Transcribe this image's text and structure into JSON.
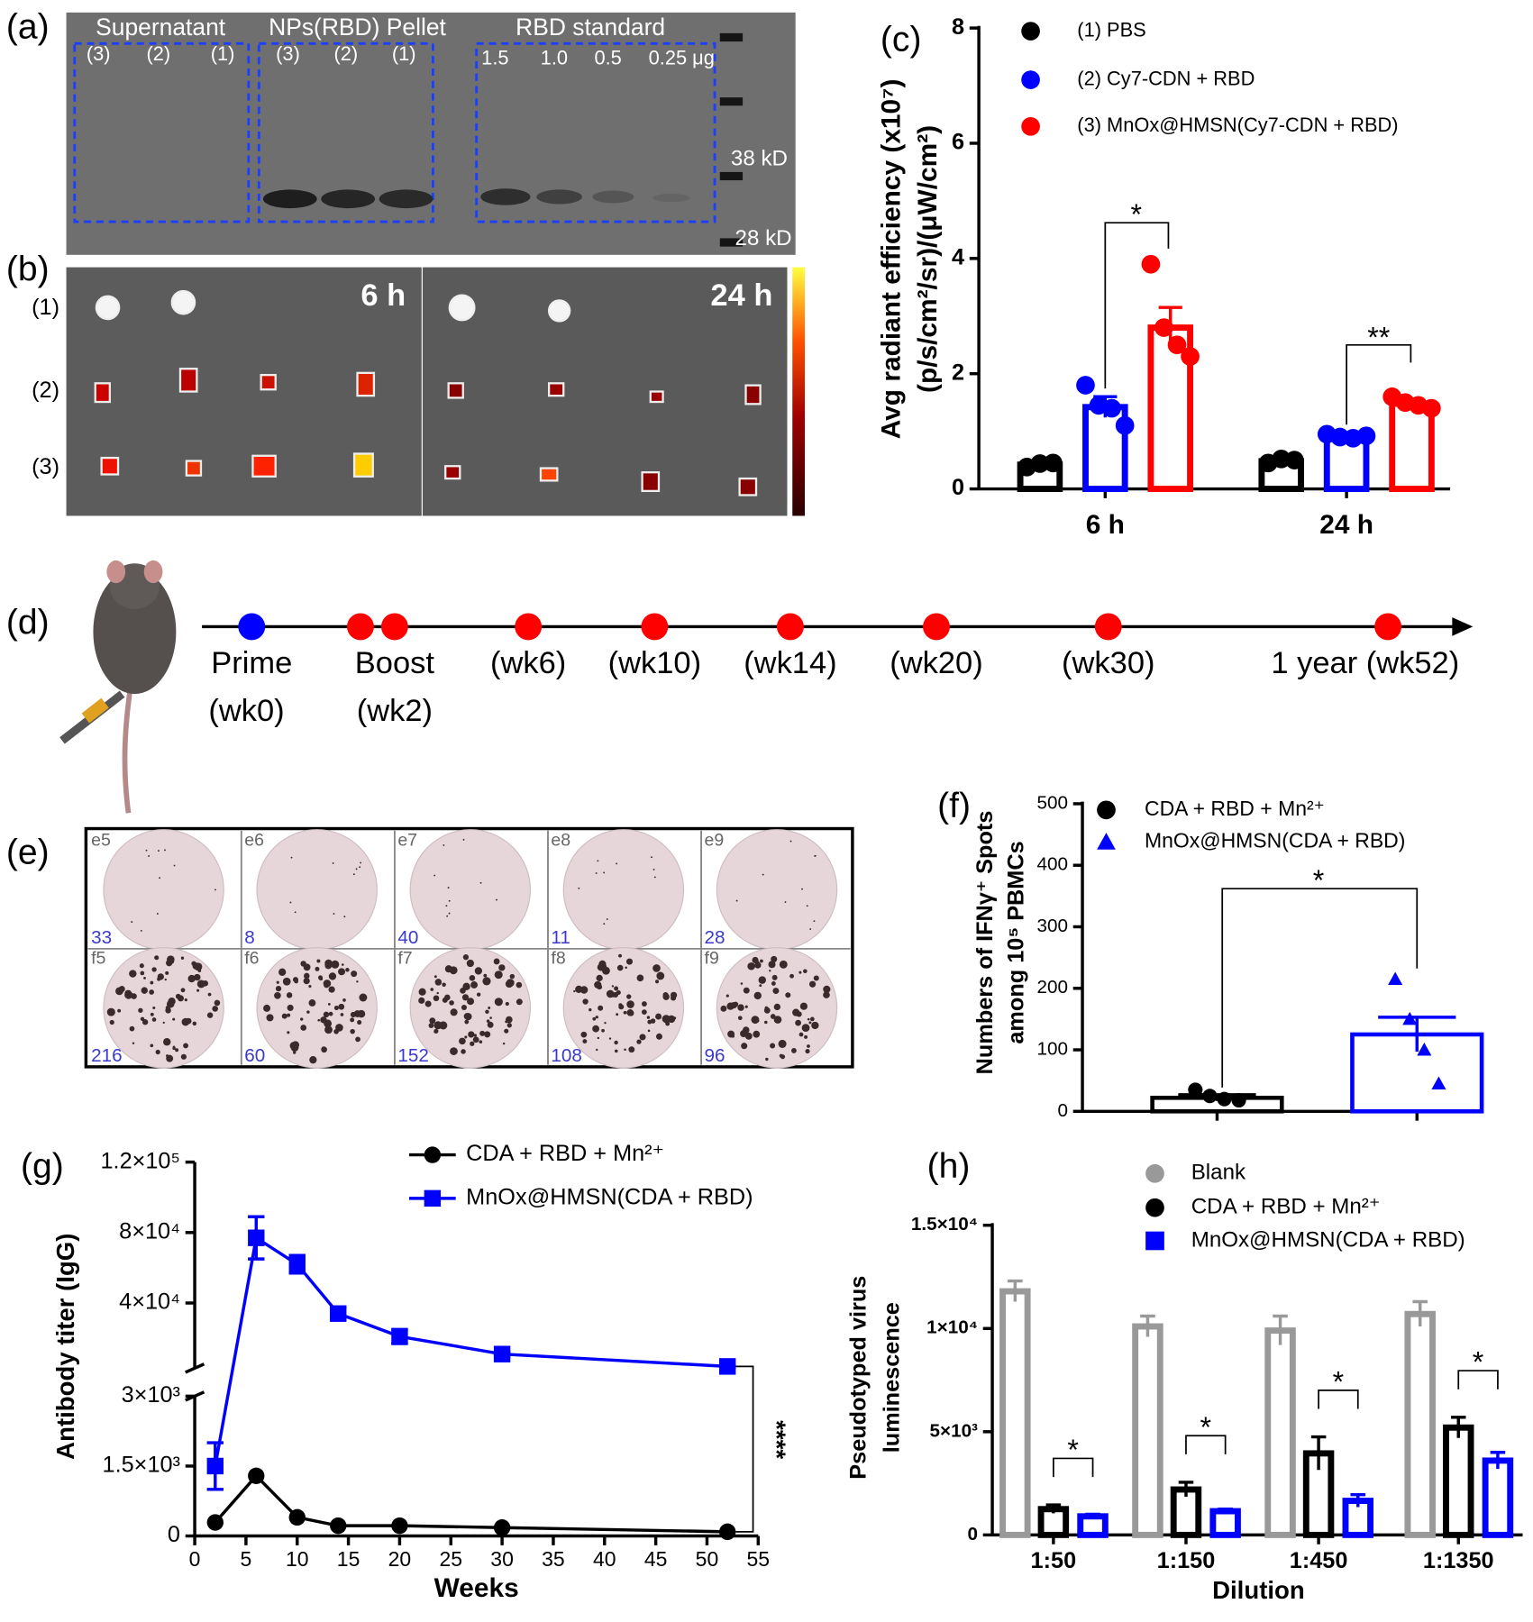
{
  "panel_labels": [
    "(a)",
    "(b)",
    "(c)",
    "(d)",
    "(e)",
    "(f)",
    "(g)",
    "(h)"
  ],
  "gel": {
    "groups": [
      "Supernatant",
      "NPs(RBD) Pellet",
      "RBD standard"
    ],
    "lanes": [
      "(3)",
      "(2)",
      "(1)",
      "(3)",
      "(2)",
      "(1)",
      "1.5",
      "1.0",
      "0.5",
      "0.25 μg"
    ],
    "markers": [
      "38 kD",
      "28 kD"
    ]
  },
  "imaging": {
    "times": [
      "6 h",
      "24 h"
    ],
    "rows": [
      "(1)",
      "(2)",
      "(3)"
    ]
  },
  "timeline": {
    "points": [
      {
        "label": "Prime",
        "sub": "(wk0)"
      },
      {
        "label": "Boost",
        "sub": "(wk2)"
      },
      {
        "label": "(wk6)"
      },
      {
        "label": "(wk10)"
      },
      {
        "label": "(wk14)"
      },
      {
        "label": "(wk20)"
      },
      {
        "label": "(wk30)"
      },
      {
        "label": "1 year (wk52)"
      }
    ]
  },
  "elispot": {
    "wells": [
      {
        "id": "e5",
        "count": 33
      },
      {
        "id": "e6",
        "count": 8
      },
      {
        "id": "e7",
        "count": 40
      },
      {
        "id": "e8",
        "count": 11
      },
      {
        "id": "e9",
        "count": 28
      },
      {
        "id": "f5",
        "count": 216
      },
      {
        "id": "f6",
        "count": 60
      },
      {
        "id": "f7",
        "count": 152
      },
      {
        "id": "f8",
        "count": 108
      },
      {
        "id": "f9",
        "count": 96
      }
    ]
  },
  "chart_data": [
    {
      "type": "bar",
      "ylabel": [
        "Avg radiant efficiency (x10⁷)",
        "(p/s/cm²/sr)/(μW/cm²)"
      ],
      "categories": [
        "6 h",
        "24 h"
      ],
      "ylim": [
        0,
        8
      ],
      "yticks": [
        0,
        2,
        4,
        6,
        8
      ],
      "series": [
        {
          "name": "(1) PBS",
          "color": "#000000",
          "values": [
            0.42,
            0.48
          ],
          "errors": [
            0.03,
            0.03
          ],
          "points": [
            [
              0.38,
              0.44,
              0.45
            ],
            [
              0.45,
              0.52,
              0.5
            ]
          ]
        },
        {
          "name": "(2) Cy7-CDN + RBD",
          "color": "#0000ff",
          "values": [
            1.42,
            0.9
          ],
          "errors": [
            0.18,
            0.05
          ],
          "points": [
            [
              1.8,
              1.45,
              1.4,
              1.1
            ],
            [
              0.95,
              0.9,
              0.88,
              0.92
            ]
          ]
        },
        {
          "name": "(3) MnOx@HMSN(Cy7-CDN + RBD)",
          "color": "#ff0000",
          "values": [
            2.8,
            1.48
          ],
          "errors": [
            0.35,
            0.08
          ],
          "points": [
            [
              3.9,
              2.8,
              2.5,
              2.3
            ],
            [
              1.6,
              1.5,
              1.45,
              1.4
            ]
          ]
        }
      ],
      "annotations": [
        "*",
        "**"
      ]
    },
    {
      "type": "bar",
      "ylabel": [
        "Numbers of IFNγ⁺ Spots",
        "among 10⁵ PBMCs"
      ],
      "ylim": [
        0,
        500
      ],
      "yticks": [
        0,
        100,
        200,
        300,
        400,
        500
      ],
      "series": [
        {
          "name": "CDA + RBD + Mn²⁺",
          "color": "#000000",
          "marker": "circle",
          "values": [
            22
          ],
          "errors": [
            5
          ],
          "points": [
            [
              35,
              25,
              20,
              18
            ]
          ]
        },
        {
          "name": "MnOx@HMSN(CDA + RBD)",
          "color": "#0000ff",
          "marker": "triangle",
          "values": [
            125
          ],
          "errors": [
            28
          ],
          "points": [
            [
              215,
              150,
              100,
              45
            ]
          ]
        }
      ],
      "annotations": [
        "*"
      ]
    },
    {
      "type": "line",
      "xlabel": "Weeks",
      "ylabel": "Antibody titer (IgG)",
      "x": [
        2,
        6,
        10,
        14,
        20,
        30,
        52
      ],
      "xlim": [
        0,
        55
      ],
      "xticks": [
        0,
        5,
        10,
        15,
        20,
        25,
        30,
        35,
        40,
        45,
        50,
        55
      ],
      "y_segments": [
        {
          "ylim": [
            0,
            3000
          ],
          "yticks": [
            0,
            {
              "value": 1500,
              "label": "1.5×10³"
            },
            {
              "value": 3000,
              "label": "3×10³"
            }
          ]
        },
        {
          "ylim": [
            3000,
            120000
          ],
          "yticks": [
            {
              "value": 40000,
              "label": "4×10⁴"
            },
            {
              "value": 80000,
              "label": "8×10⁴"
            },
            {
              "value": 120000,
              "label": "1.2×10⁵"
            }
          ]
        }
      ],
      "series": [
        {
          "name": "CDA + RBD + Mn²⁺",
          "color": "#000000",
          "marker": "circle",
          "values": [
            290,
            1290,
            400,
            220,
            220,
            180,
            90
          ]
        },
        {
          "name": "MnOx@HMSN(CDA + RBD)",
          "color": "#0000ff",
          "marker": "square",
          "values": [
            1500,
            77000,
            62000,
            34000,
            21000,
            11000,
            4000
          ],
          "errors": [
            500,
            12000,
            5000,
            3500,
            4000,
            1000,
            500
          ]
        }
      ],
      "annotations": [
        "****"
      ]
    },
    {
      "type": "bar",
      "xlabel": "Dilution",
      "ylabel": [
        "Pseudotyped virus",
        "luminescence"
      ],
      "categories": [
        "1:50",
        "1:150",
        "1:450",
        "1:1350"
      ],
      "ylim": [
        0,
        15000
      ],
      "yticks": [
        0,
        {
          "value": 5000,
          "label": "5×10³"
        },
        {
          "value": 10000,
          "label": "1×10⁴"
        },
        {
          "value": 15000,
          "label": "1.5×10⁴"
        }
      ],
      "series": [
        {
          "name": "Blank",
          "color": "#999999",
          "marker": "circle",
          "values": [
            11800,
            10100,
            9900,
            10700
          ],
          "errors": [
            500,
            500,
            700,
            600
          ]
        },
        {
          "name": "CDA + RBD + Mn²⁺",
          "color": "#000000",
          "marker": "circle",
          "values": [
            1250,
            2200,
            3950,
            5200
          ],
          "errors": [
            200,
            350,
            800,
            500
          ]
        },
        {
          "name": "MnOx@HMSN(CDA + RBD)",
          "color": "#0000ff",
          "marker": "square",
          "values": [
            900,
            1150,
            1650,
            3600
          ],
          "errors": [
            100,
            100,
            300,
            400
          ]
        }
      ],
      "annotations": [
        "*",
        "*",
        "*",
        "*"
      ]
    }
  ]
}
